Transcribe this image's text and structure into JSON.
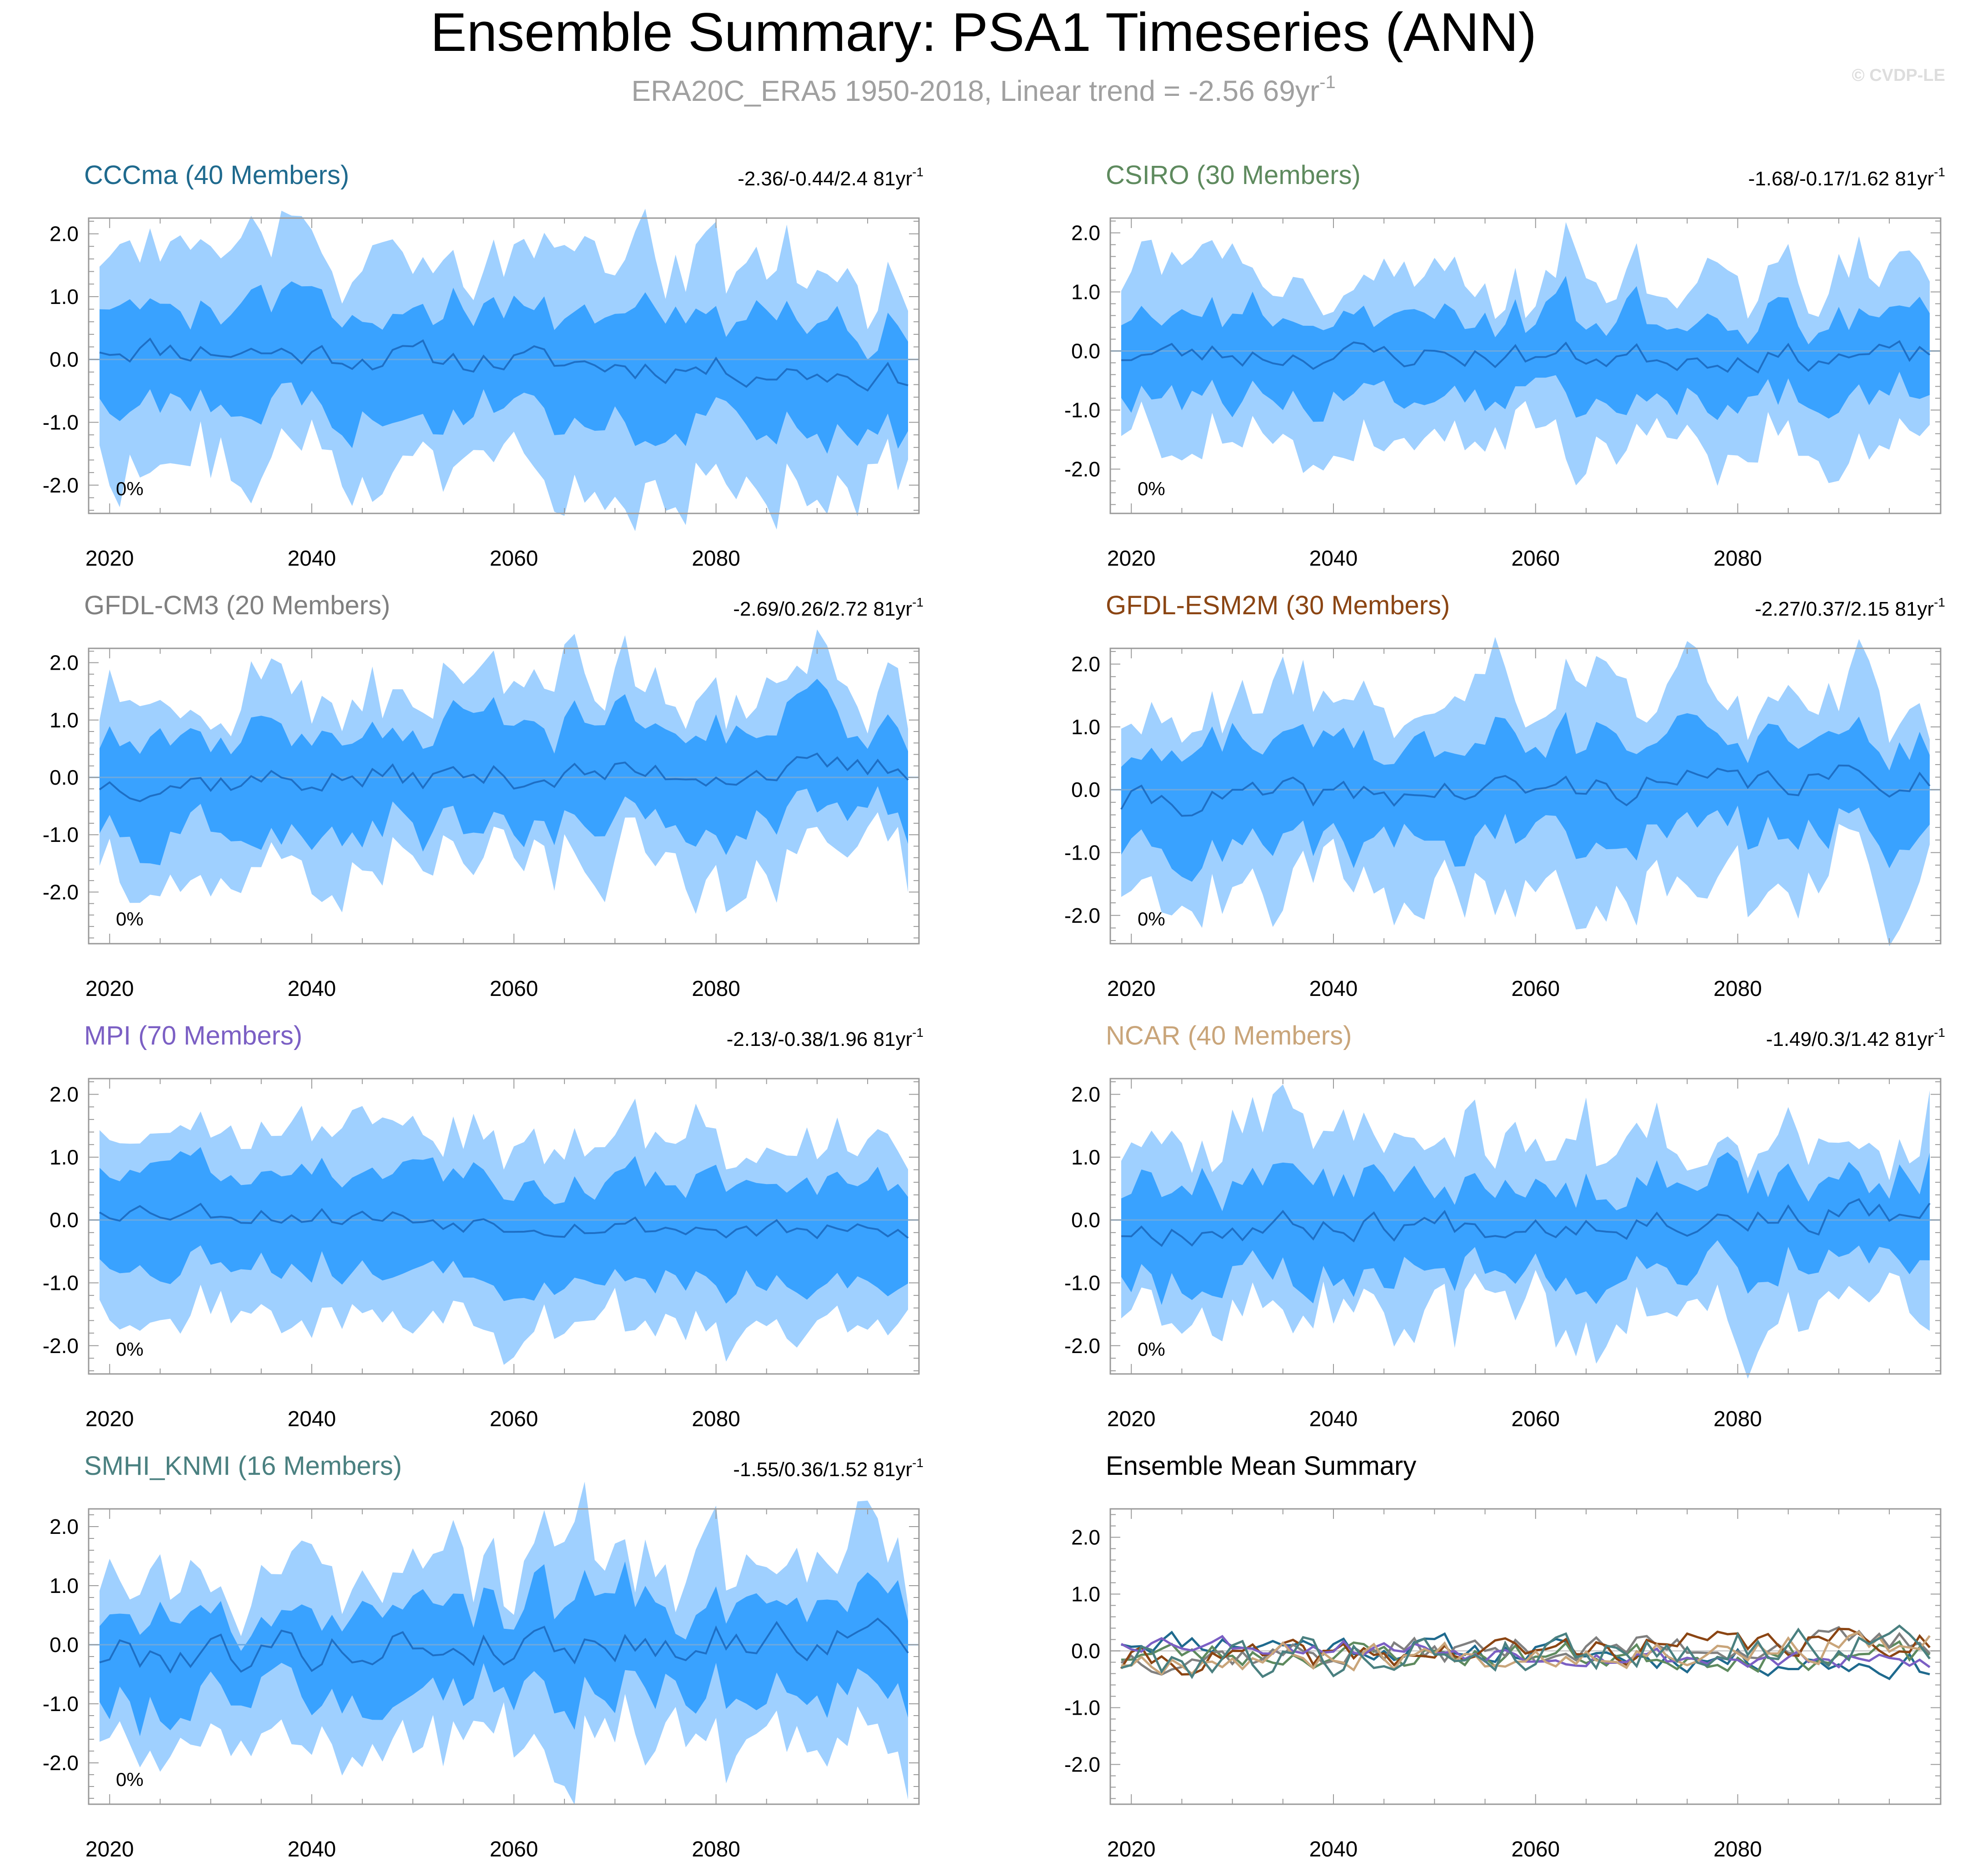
{
  "title": "Ensemble Summary: PSA1 Timeseries (ANN)",
  "subtitle": {
    "main": "ERA20C_ERA5 1950-2018, Linear trend = -2.56 69yr",
    "sup": "-1"
  },
  "copyright": "© CVDP-LE",
  "colors": {
    "outer_band": "#9fd0ff",
    "inner_band": "#39a2ff",
    "mean_line": "#1e6fc5",
    "zero_line": "#6fa9dd",
    "frame": "#9a9a9a"
  },
  "chart_data": [
    {
      "type": "area",
      "title": "CCCma (40 Members)",
      "title_color": "#1f6a8e",
      "trend": {
        "text": "-2.36/-0.44/2.4 81yr",
        "sup": "-1"
      },
      "percent_label": "0%",
      "x": {
        "start": 2019,
        "end": 2099,
        "ticks": [
          2020,
          2040,
          2060,
          2080
        ]
      },
      "ylim": [
        -2.45,
        2.25
      ],
      "yticks": [
        2.0,
        1.0,
        0.0,
        -1.0,
        -2.0
      ],
      "yticklabels": [
        "2.0",
        "1.0",
        "0.0",
        "-1.0",
        "-2.0"
      ],
      "mean_trend": [
        0.22,
        -0.26
      ],
      "mean_amp": 0.13,
      "inner_half": 0.82,
      "outer_half": 1.65,
      "noise": 0.3,
      "seed": 11
    },
    {
      "type": "area",
      "title": "CSIRO (30 Members)",
      "title_color": "#5e8a5e",
      "trend": {
        "text": "-1.68/-0.17/1.62 81yr",
        "sup": "-1"
      },
      "percent_label": "0%",
      "x": {
        "start": 2019,
        "end": 2099,
        "ticks": [
          2020,
          2040,
          2060,
          2080
        ]
      },
      "ylim": [
        -2.75,
        2.25
      ],
      "yticks": [
        2.0,
        1.0,
        0.0,
        -1.0,
        -2.0
      ],
      "yticklabels": [
        "2.0",
        "1.0",
        "0.0",
        "-1.0",
        "-2.0"
      ],
      "mean_trend": [
        -0.05,
        -0.1
      ],
      "mean_amp": 0.13,
      "inner_half": 0.72,
      "outer_half": 1.45,
      "noise": 0.3,
      "seed": 23
    },
    {
      "type": "area",
      "title": "GFDL-CM3 (20 Members)",
      "title_color": "#808080",
      "trend": {
        "text": "-2.69/0.26/2.72 81yr",
        "sup": "-1"
      },
      "percent_label": "0%",
      "x": {
        "start": 2019,
        "end": 2099,
        "ticks": [
          2020,
          2040,
          2060,
          2080
        ]
      },
      "ylim": [
        -2.9,
        2.25
      ],
      "yticks": [
        2.0,
        1.0,
        0.0,
        -1.0,
        -2.0
      ],
      "yticklabels": [
        "2.0",
        "1.0",
        "0.0",
        "-1.0",
        "-2.0"
      ],
      "mean_trend": [
        -0.1,
        0.15
      ],
      "mean_amp": 0.14,
      "inner_half": 0.85,
      "outer_half": 1.5,
      "noise": 0.32,
      "seed": 37
    },
    {
      "type": "area",
      "title": "GFDL-ESM2M (30 Members)",
      "title_color": "#8b4513",
      "trend": {
        "text": "-2.27/0.37/2.15 81yr",
        "sup": "-1"
      },
      "percent_label": "0%",
      "x": {
        "start": 2019,
        "end": 2099,
        "ticks": [
          2020,
          2040,
          2060,
          2080
        ]
      },
      "ylim": [
        -2.45,
        2.25
      ],
      "yticks": [
        2.0,
        1.0,
        0.0,
        -1.0,
        -2.0
      ],
      "yticklabels": [
        "2.0",
        "1.0",
        "0.0",
        "-1.0",
        "-2.0"
      ],
      "mean_trend": [
        -0.2,
        0.2
      ],
      "mean_amp": 0.14,
      "inner_half": 0.8,
      "outer_half": 1.55,
      "noise": 0.3,
      "seed": 41
    },
    {
      "type": "area",
      "title": "MPI (70 Members)",
      "title_color": "#7b5fc4",
      "trend": {
        "text": "-2.13/-0.38/1.96 81yr",
        "sup": "-1"
      },
      "percent_label": "0%",
      "x": {
        "start": 2019,
        "end": 2099,
        "ticks": [
          2020,
          2040,
          2060,
          2080
        ]
      },
      "ylim": [
        -2.45,
        2.25
      ],
      "yticks": [
        2.0,
        1.0,
        0.0,
        -1.0,
        -2.0
      ],
      "yticklabels": [
        "2.0",
        "1.0",
        "0.0",
        "-1.0",
        "-2.0"
      ],
      "mean_trend": [
        0.2,
        -0.25
      ],
      "mean_amp": 0.1,
      "inner_half": 0.8,
      "outer_half": 1.5,
      "noise": 0.22,
      "seed": 53
    },
    {
      "type": "area",
      "title": "NCAR (40 Members)",
      "title_color": "#c9a57a",
      "trend": {
        "text": "-1.49/0.3/1.42 81yr",
        "sup": "-1"
      },
      "percent_label": "0%",
      "x": {
        "start": 2019,
        "end": 2099,
        "ticks": [
          2020,
          2040,
          2060,
          2080
        ]
      },
      "ylim": [
        -2.45,
        2.25
      ],
      "yticks": [
        2.0,
        1.0,
        0.0,
        -1.0,
        -2.0
      ],
      "yticklabels": [
        "2.0",
        "1.0",
        "0.0",
        "-1.0",
        "-2.0"
      ],
      "mean_trend": [
        -0.15,
        0.1
      ],
      "mean_amp": 0.14,
      "inner_half": 0.72,
      "outer_half": 1.45,
      "noise": 0.3,
      "seed": 67
    },
    {
      "type": "area",
      "title": "SMHI_KNMI (16 Members)",
      "title_color": "#4a8080",
      "trend": {
        "text": "-1.55/0.36/1.52 81yr",
        "sup": "-1"
      },
      "percent_label": "0%",
      "x": {
        "start": 2019,
        "end": 2099,
        "ticks": [
          2020,
          2040,
          2060,
          2080
        ]
      },
      "ylim": [
        -2.7,
        2.3
      ],
      "yticks": [
        2.0,
        1.0,
        0.0,
        -1.0,
        -2.0
      ],
      "yticklabels": [
        "2.0",
        "1.0",
        "0.0",
        "-1.0",
        "-2.0"
      ],
      "mean_trend": [
        -0.15,
        0.15
      ],
      "mean_amp": 0.2,
      "inner_half": 0.75,
      "outer_half": 1.5,
      "noise": 0.35,
      "seed": 79
    },
    {
      "type": "line",
      "title": "Ensemble Mean Summary",
      "title_color": "#000000",
      "x": {
        "start": 2019,
        "end": 2099,
        "ticks": [
          2020,
          2040,
          2060,
          2080
        ]
      },
      "ylim": [
        -2.7,
        2.5
      ],
      "yticks": [
        2.0,
        1.0,
        0.0,
        -1.0,
        -2.0
      ],
      "yticklabels": [
        "2.0",
        "1.0",
        "0.0",
        "-1.0",
        "-2.0"
      ],
      "series": [
        {
          "name": "CCCma",
          "color": "#1f6a8e",
          "trend": [
            0.22,
            -0.26
          ],
          "amp": 0.13,
          "seed": 11
        },
        {
          "name": "CSIRO",
          "color": "#5e8a5e",
          "trend": [
            -0.05,
            -0.1
          ],
          "amp": 0.13,
          "seed": 23
        },
        {
          "name": "GFDL-CM3",
          "color": "#808080",
          "trend": [
            -0.1,
            0.15
          ],
          "amp": 0.14,
          "seed": 37
        },
        {
          "name": "GFDL-ESM2M",
          "color": "#8b4513",
          "trend": [
            -0.2,
            0.2
          ],
          "amp": 0.14,
          "seed": 41
        },
        {
          "name": "MPI",
          "color": "#7b5fc4",
          "trend": [
            0.2,
            -0.25
          ],
          "amp": 0.1,
          "seed": 53
        },
        {
          "name": "NCAR",
          "color": "#c9a57a",
          "trend": [
            -0.15,
            0.1
          ],
          "amp": 0.14,
          "seed": 67
        },
        {
          "name": "SMHI_KNMI",
          "color": "#4a8080",
          "trend": [
            -0.15,
            0.15
          ],
          "amp": 0.2,
          "seed": 79
        }
      ]
    }
  ]
}
